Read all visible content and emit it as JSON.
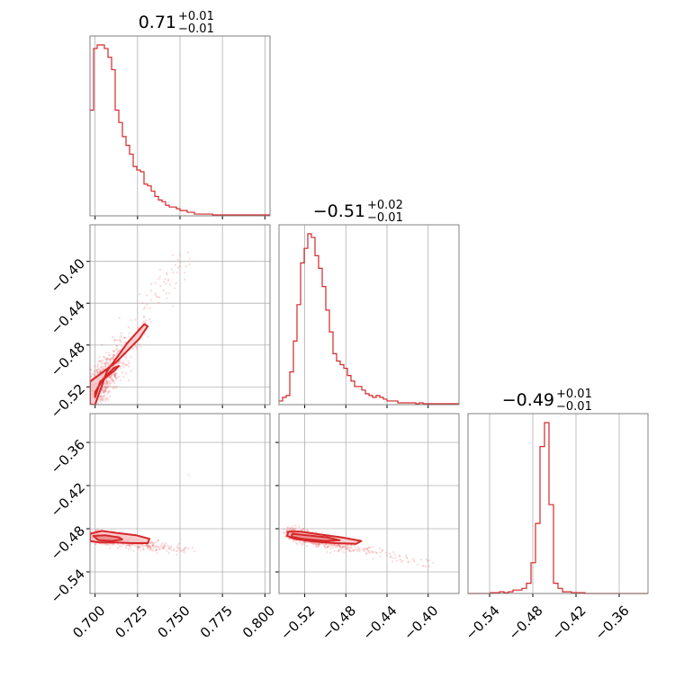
{
  "chart_data": [
    {
      "panel": "hist-param-1",
      "type": "histogram",
      "title": {
        "value": "0.71",
        "plus": "+0.01",
        "minus": "−0.01"
      },
      "xlim": [
        0.697,
        0.803
      ],
      "x_ticks": [
        "0.700",
        "0.725",
        "0.750",
        "0.775",
        "0.800"
      ],
      "x_tick_values": [
        0.7,
        0.725,
        0.75,
        0.775,
        0.8
      ],
      "bin_edges_range": [
        0.697,
        0.803
      ],
      "counts": [
        60,
        95,
        97,
        97,
        95,
        90,
        83,
        60,
        53,
        45,
        40,
        35,
        28,
        26,
        25,
        18,
        17,
        14,
        11,
        9,
        8,
        6,
        5,
        5,
        4,
        3,
        3,
        2,
        2,
        1,
        1,
        1,
        1,
        1,
        0.5,
        0.5,
        0.5,
        0.5,
        0.5,
        0.5,
        0.5,
        0.5,
        0.5,
        0.5,
        0.5,
        0.5,
        0.5,
        0.5,
        0.5,
        0.5
      ]
    },
    {
      "panel": "hist-param-2",
      "type": "histogram",
      "title": {
        "value": "−0.51",
        "plus": "+0.02",
        "minus": "−0.01"
      },
      "xlim": [
        -0.545,
        -0.37
      ],
      "x_ticks": [
        "−0.52",
        "−0.48",
        "−0.44",
        "−0.40"
      ],
      "x_tick_values": [
        -0.52,
        -0.48,
        -0.44,
        -0.4
      ],
      "bin_edges_range": [
        -0.545,
        -0.37
      ],
      "counts": [
        2,
        4,
        5,
        18,
        35,
        55,
        78,
        86,
        94,
        92,
        82,
        75,
        65,
        52,
        40,
        28,
        24,
        22,
        20,
        16,
        13,
        10,
        10,
        8,
        6,
        5,
        4,
        5,
        4,
        3,
        2,
        2,
        2,
        1,
        1,
        1,
        1,
        1,
        0.5,
        1,
        0.5,
        0.5,
        0.5,
        0.5,
        0.5,
        0.5,
        0.5,
        0.5,
        0.5,
        0.5
      ]
    },
    {
      "panel": "hist-param-3",
      "type": "histogram",
      "title": {
        "value": "−0.49",
        "plus": "+0.01",
        "minus": "−0.01"
      },
      "xlim": [
        -0.57,
        -0.32
      ],
      "x_ticks": [
        "−0.54",
        "−0.48",
        "−0.42",
        "−0.36"
      ],
      "x_tick_values": [
        -0.54,
        -0.48,
        -0.42,
        -0.36
      ],
      "bin_edges_range": [
        -0.57,
        -0.32
      ],
      "counts": [
        0,
        0,
        0,
        0,
        0,
        0.5,
        0.5,
        1,
        0.5,
        1,
        2,
        2,
        3,
        6,
        18,
        41,
        86,
        100,
        52,
        6,
        3,
        1,
        1,
        0.5,
        0.5,
        0.5,
        0,
        0,
        0,
        0,
        0,
        0,
        0,
        0,
        0,
        0,
        0,
        0,
        0,
        0
      ]
    },
    {
      "panel": "scatter-p1-p2",
      "type": "scatter",
      "xlim": [
        0.697,
        0.803
      ],
      "ylim": [
        -0.537,
        -0.365
      ],
      "y_ticks": [
        "−0.40",
        "−0.44",
        "−0.48",
        "−0.52"
      ],
      "y_tick_values": [
        -0.4,
        -0.44,
        -0.48,
        -0.52
      ],
      "density_center": [
        0.706,
        -0.515
      ],
      "trend": {
        "x_from": 0.697,
        "x_to": 0.757,
        "y_from": -0.53,
        "y_to": -0.388
      },
      "contours": [
        {
          "level": "outer",
          "points": [
            [
              0.697,
              -0.537
            ],
            [
              0.697,
              -0.515
            ],
            [
              0.712,
              -0.497
            ],
            [
              0.726,
              -0.474
            ],
            [
              0.731,
              -0.462
            ],
            [
              0.729,
              -0.46
            ],
            [
              0.719,
              -0.478
            ],
            [
              0.707,
              -0.505
            ],
            [
              0.7,
              -0.537
            ]
          ]
        },
        {
          "level": "inner",
          "points": [
            [
              0.7,
              -0.53
            ],
            [
              0.703,
              -0.515
            ],
            [
              0.711,
              -0.505
            ],
            [
              0.714,
              -0.5
            ],
            [
              0.711,
              -0.502
            ],
            [
              0.705,
              -0.512
            ],
            [
              0.7,
              -0.525
            ]
          ]
        }
      ]
    },
    {
      "panel": "scatter-p1-p3",
      "type": "scatter",
      "xlim": [
        0.697,
        0.803
      ],
      "ylim": [
        -0.57,
        -0.32
      ],
      "y_ticks": [
        "−0.36",
        "−0.42",
        "−0.48",
        "−0.54"
      ],
      "y_tick_values": [
        -0.36,
        -0.42,
        -0.48,
        -0.54
      ],
      "density_center": [
        0.707,
        -0.493
      ],
      "contours": [
        {
          "level": "outer",
          "points": [
            [
              0.697,
              -0.487
            ],
            [
              0.704,
              -0.483
            ],
            [
              0.713,
              -0.486
            ],
            [
              0.724,
              -0.489
            ],
            [
              0.732,
              -0.494
            ],
            [
              0.731,
              -0.5
            ],
            [
              0.722,
              -0.5
            ],
            [
              0.712,
              -0.499
            ],
            [
              0.702,
              -0.499
            ],
            [
              0.697,
              -0.497
            ]
          ]
        },
        {
          "level": "inner",
          "points": [
            [
              0.699,
              -0.49
            ],
            [
              0.706,
              -0.489
            ],
            [
              0.714,
              -0.492
            ],
            [
              0.716,
              -0.495
            ],
            [
              0.71,
              -0.497
            ],
            [
              0.702,
              -0.496
            ]
          ]
        }
      ]
    },
    {
      "panel": "scatter-p2-p3",
      "type": "scatter",
      "xlim": [
        -0.545,
        -0.37
      ],
      "ylim": [
        -0.57,
        -0.32
      ],
      "density_center": [
        -0.51,
        -0.49
      ],
      "contours": [
        {
          "level": "outer",
          "points": [
            [
              -0.536,
              -0.484
            ],
            [
              -0.524,
              -0.484
            ],
            [
              -0.505,
              -0.488
            ],
            [
              -0.484,
              -0.492
            ],
            [
              -0.465,
              -0.497
            ],
            [
              -0.47,
              -0.501
            ],
            [
              -0.49,
              -0.5
            ],
            [
              -0.51,
              -0.498
            ],
            [
              -0.53,
              -0.494
            ],
            [
              -0.537,
              -0.49
            ]
          ]
        },
        {
          "level": "inner",
          "points": [
            [
              -0.532,
              -0.487
            ],
            [
              -0.518,
              -0.489
            ],
            [
              -0.498,
              -0.492
            ],
            [
              -0.486,
              -0.496
            ],
            [
              -0.5,
              -0.497
            ],
            [
              -0.522,
              -0.494
            ],
            [
              -0.533,
              -0.491
            ]
          ]
        }
      ]
    }
  ],
  "colors": {
    "main": "#d62728",
    "fill_outer": "#f7c9ca",
    "fill_inner": "#ea8a8c",
    "scatter": "#e8585a",
    "frame": "#808080",
    "grid": "#b0b0b0"
  }
}
